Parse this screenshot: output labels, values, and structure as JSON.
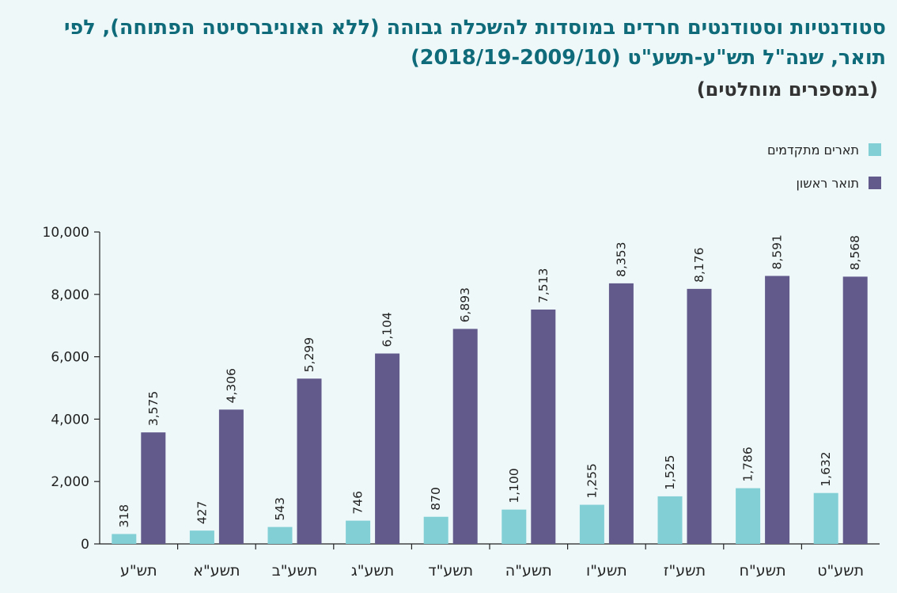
{
  "title": "סטודנטיות וסטודנטים חרדים במוסדות להשכלה גבוהה (ללא האוניברסיטה הפתוחה), לפי תואר, שנה\"ל תש\"ע-תשע\"ט (2018/19-2009/10)",
  "subtitle": "(במספרים מוחלטים)",
  "colors": {
    "advanced": "#82d0d6",
    "first": "#635a8c",
    "title": "#0f6b79"
  },
  "chart_data": {
    "type": "bar",
    "categories": [
      "תש\"ע",
      "תשע\"א",
      "תשע\"ב",
      "תשע\"ג",
      "תשע\"ד",
      "תשע\"ה",
      "תשע\"ו",
      "תשע\"ז",
      "תשע\"ח",
      "תשע\"ט"
    ],
    "series": [
      {
        "name": "תארים מתקדמים",
        "color": "#82d0d6",
        "values": [
          318,
          427,
          543,
          746,
          870,
          1100,
          1255,
          1525,
          1786,
          1632
        ],
        "labels": [
          "318",
          "427",
          "543",
          "746",
          "870",
          "1,100",
          "1,255",
          "1,525",
          "1,786",
          "1,632"
        ]
      },
      {
        "name": "תואר ראשון",
        "color": "#635a8c",
        "values": [
          3575,
          4306,
          5299,
          6104,
          6893,
          7513,
          8353,
          8176,
          8591,
          8568
        ],
        "labels": [
          "3,575",
          "4,306",
          "5,299",
          "6,104",
          "6,893",
          "7,513",
          "8,353",
          "8,176",
          "8,591",
          "8,568"
        ]
      }
    ],
    "ylim": [
      0,
      10000
    ],
    "yticks": [
      0,
      2000,
      4000,
      6000,
      8000,
      10000
    ],
    "ytick_labels": [
      "0",
      "2,000",
      "4,000",
      "6,000",
      "8,000",
      "10,000"
    ],
    "legend_position": "top-right",
    "grid": false
  }
}
